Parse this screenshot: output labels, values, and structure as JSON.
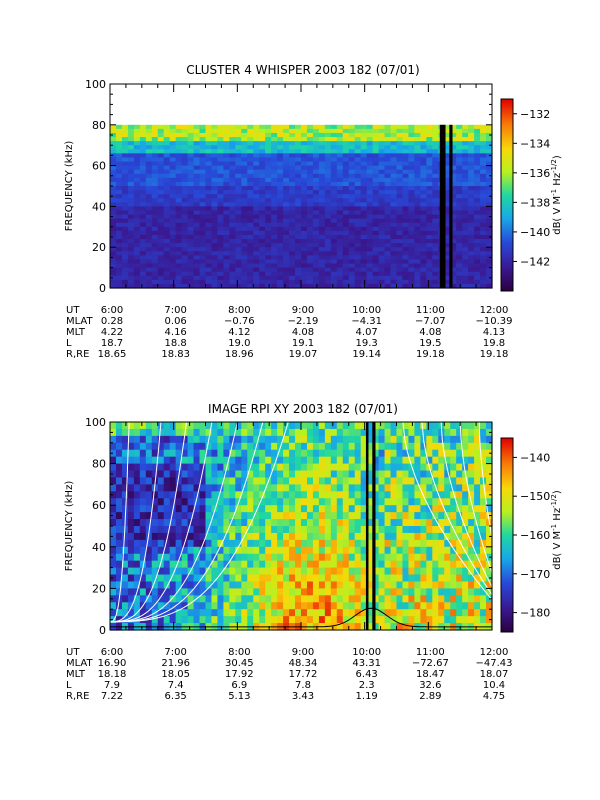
{
  "chart_data": [
    {
      "type": "heatmap",
      "title": "CLUSTER 4 WHISPER 2003 182 (07/01)",
      "ylabel": "FREQUENCY (kHz)",
      "ylim": [
        0,
        100
      ],
      "yticks": [
        "0",
        "20",
        "40",
        "60",
        "80",
        "100"
      ],
      "xlim_hours": [
        6,
        12
      ],
      "colorbar": {
        "label": "dB( V M⁻¹ Hz⁻¹′²)",
        "label_parts": [
          "dB( V M",
          "-1",
          " Hz",
          "-1/2",
          ")"
        ],
        "range": [
          -144,
          -131
        ],
        "ticks": [
          "-132",
          "-134",
          "-136",
          "-138",
          "-140",
          "-142"
        ]
      },
      "ephemeris": {
        "row_labels": [
          "UT",
          "MLAT",
          "MLT",
          "L",
          "R,RE"
        ],
        "columns": [
          [
            "6:00",
            "0.28",
            "4.22",
            "18.7",
            "18.65"
          ],
          [
            "7:00",
            "0.06",
            "4.16",
            "18.8",
            "18.83"
          ],
          [
            "8:00",
            "−0.76",
            "4.12",
            "19.0",
            "18.96"
          ],
          [
            "9:00",
            "−2.19",
            "4.08",
            "19.1",
            "19.07"
          ],
          [
            "10:00",
            "−4.31",
            "4.07",
            "19.3",
            "19.14"
          ],
          [
            "11:00",
            "−7.07",
            "4.08",
            "19.5",
            "19.18"
          ],
          [
            "12:00",
            "−10.39",
            "4.13",
            "19.8",
            "19.18"
          ]
        ]
      },
      "data_top_khz": 80,
      "data_gaps_hours": [
        [
          11.18,
          11.27
        ],
        [
          11.33,
          11.38
        ]
      ]
    },
    {
      "type": "heatmap",
      "title": "IMAGE RPI XY 2003 182 (07/01)",
      "ylabel": "FREQUENCY (kHz)",
      "ylim": [
        0,
        100
      ],
      "yticks": [
        "0",
        "20",
        "40",
        "60",
        "80",
        "100"
      ],
      "xlim_hours": [
        6,
        12
      ],
      "colorbar": {
        "label": "dB( V M⁻¹ Hz⁻¹′²)",
        "label_parts": [
          "dB( V M",
          "-1",
          " Hz",
          "-1/2",
          ")"
        ],
        "range": [
          -185,
          -135
        ],
        "ticks": [
          "-140",
          "-150",
          "-160",
          "-170",
          "-180"
        ]
      },
      "ephemeris": {
        "row_labels": [
          "UT",
          "MLAT",
          "MLT",
          "L",
          "R,RE"
        ],
        "columns": [
          [
            "6:00",
            "16.90",
            "18.18",
            "7.9",
            "7.22"
          ],
          [
            "7:00",
            "21.96",
            "18.05",
            "7.4",
            "6.35"
          ],
          [
            "8:00",
            "30.45",
            "17.92",
            "6.9",
            "5.13"
          ],
          [
            "9:00",
            "48.34",
            "17.72",
            "7.8",
            "3.43"
          ],
          [
            "10:00",
            "43.31",
            "6.43",
            "2.3",
            "1.19"
          ],
          [
            "11:00",
            "−72.67",
            "18.47",
            "32.6",
            "2.89"
          ],
          [
            "12:00",
            "−47.43",
            "18.07",
            "10.4",
            "4.75"
          ]
        ]
      },
      "data_gaps_hours": [
        [
          10.02,
          10.06
        ],
        [
          10.12,
          10.17
        ]
      ]
    }
  ],
  "colors": {
    "background": "#ffffff",
    "axis": "#000000",
    "overlay_curves": "#ffffff",
    "colormap": [
      "#2a0040",
      "#3a1890",
      "#2848d8",
      "#18a8e8",
      "#20d8a0",
      "#b8f020",
      "#f8d808",
      "#f87808",
      "#e00000"
    ]
  }
}
